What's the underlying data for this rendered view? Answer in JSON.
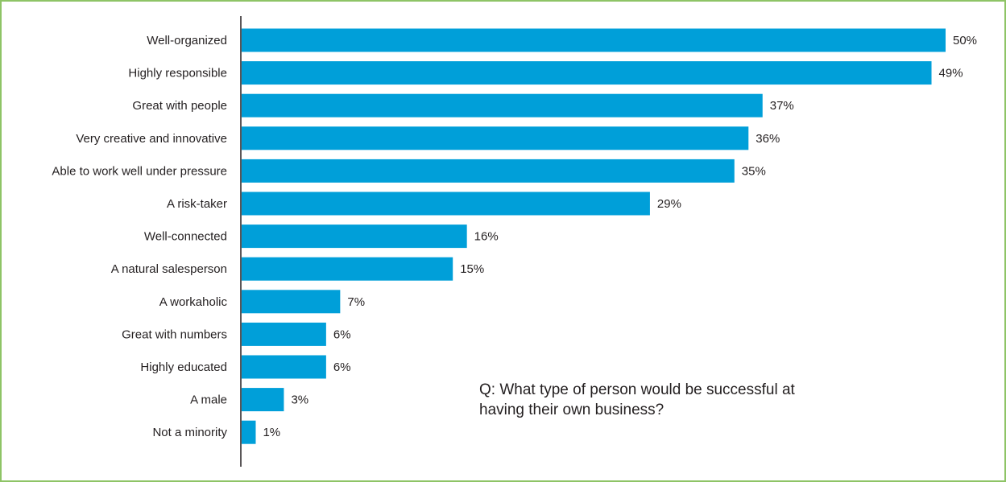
{
  "chart_data": {
    "type": "bar",
    "orientation": "horizontal",
    "categories": [
      "Well-organized",
      "Highly responsible",
      "Great with people",
      "Very creative and innovative",
      "Able to work well under pressure",
      "A risk-taker",
      "Well-connected",
      "A natural salesperson",
      "A workaholic",
      "Great with numbers",
      "Highly educated",
      "A male",
      "Not a minority"
    ],
    "values": [
      50,
      49,
      37,
      36,
      35,
      29,
      16,
      15,
      7,
      6,
      6,
      3,
      1
    ],
    "value_labels": [
      "50%",
      "49%",
      "37%",
      "36%",
      "35%",
      "29%",
      "16%",
      "15%",
      "7%",
      "6%",
      "6%",
      "3%",
      "1%"
    ],
    "unit": "%",
    "xlim": [
      0,
      50
    ],
    "grid": false,
    "bar_color": "#009fd9",
    "annotation": "Q: What type of person would be successful at having their own business?"
  },
  "colors": {
    "border": "#8ec466",
    "bar": "#009fd9",
    "text": "#231f20",
    "axis": "#231f20"
  }
}
